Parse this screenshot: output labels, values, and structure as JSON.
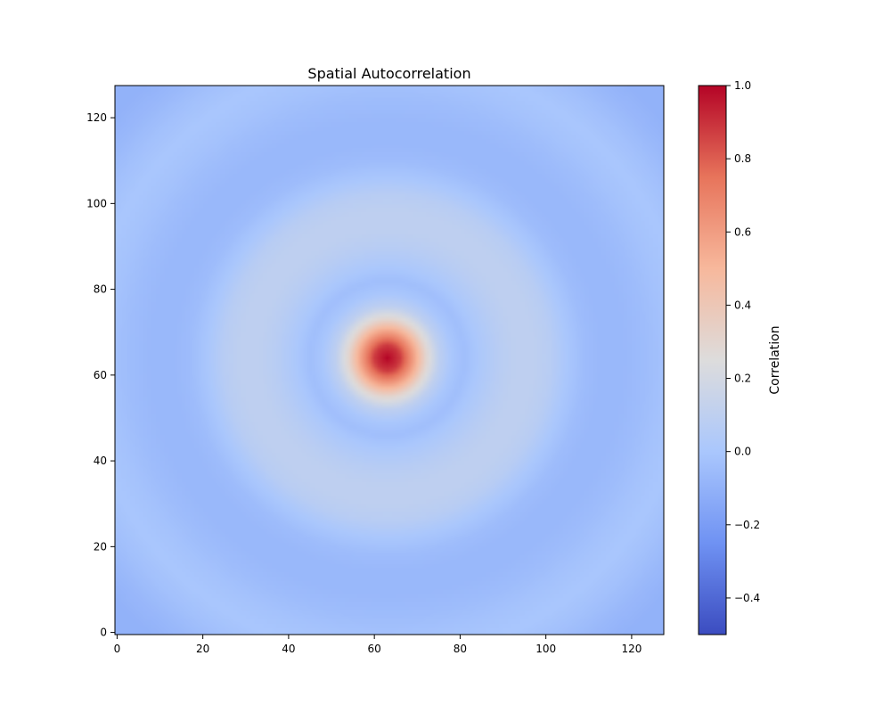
{
  "chart_data": {
    "type": "heatmap",
    "title": "Spatial Autocorrelation",
    "xlabel": "",
    "ylabel": "",
    "grid": false,
    "xlim": [
      -0.5,
      127.5
    ],
    "ylim": [
      127.5,
      -0.5
    ],
    "x_ticks": [
      0,
      20,
      40,
      60,
      80,
      100,
      120
    ],
    "y_ticks": [
      0,
      20,
      40,
      60,
      80,
      100,
      120
    ],
    "colormap": "coolwarm",
    "colormap_stops": [
      "#3b4cc0",
      "#6f92f3",
      "#aac7fd",
      "#dddcdc",
      "#f7b89c",
      "#e7745b",
      "#b40426"
    ],
    "grid_size": 128,
    "center": [
      63,
      63
    ],
    "value_range": [
      -0.5,
      1.0
    ],
    "colorbar": {
      "label": "Correlation",
      "ticks": [
        -0.4,
        -0.2,
        0.0,
        0.2,
        0.4,
        0.6,
        0.8,
        1.0
      ],
      "tick_labels": [
        "−0.4",
        "−0.2",
        "0.0",
        "0.2",
        "0.4",
        "0.6",
        "0.8",
        "1.0"
      ]
    },
    "radial_profile": {
      "radius": [
        0,
        3,
        6,
        9,
        12,
        15,
        18,
        22,
        26,
        30,
        34,
        38,
        42,
        46,
        50,
        55,
        60,
        65,
        70,
        75,
        80,
        85,
        90
      ],
      "correlation": [
        1.0,
        0.88,
        0.6,
        0.3,
        0.1,
        0.0,
        -0.04,
        0.02,
        0.07,
        0.1,
        0.1,
        0.07,
        0.0,
        -0.05,
        -0.07,
        -0.07,
        -0.05,
        -0.02,
        0.0,
        -0.03,
        -0.07,
        -0.1,
        -0.1
      ]
    }
  }
}
